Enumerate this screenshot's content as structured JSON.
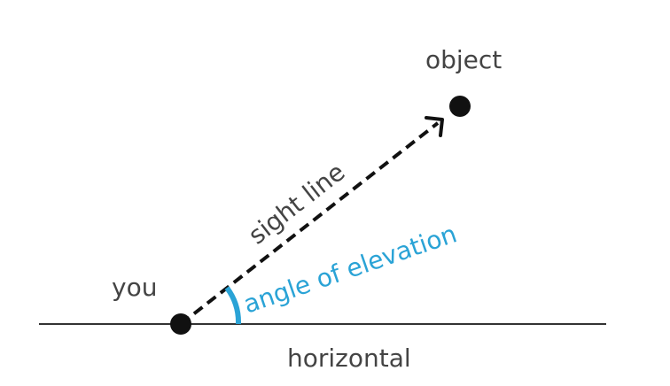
{
  "labels": {
    "object": "object",
    "sight_line": "sight line",
    "angle": "angle of elevation",
    "you": "you",
    "horizontal": "horizontal"
  },
  "colors": {
    "ink": "#111111",
    "text": "#444444",
    "accent": "#2aa3d6",
    "ground_line": "#333333"
  }
}
